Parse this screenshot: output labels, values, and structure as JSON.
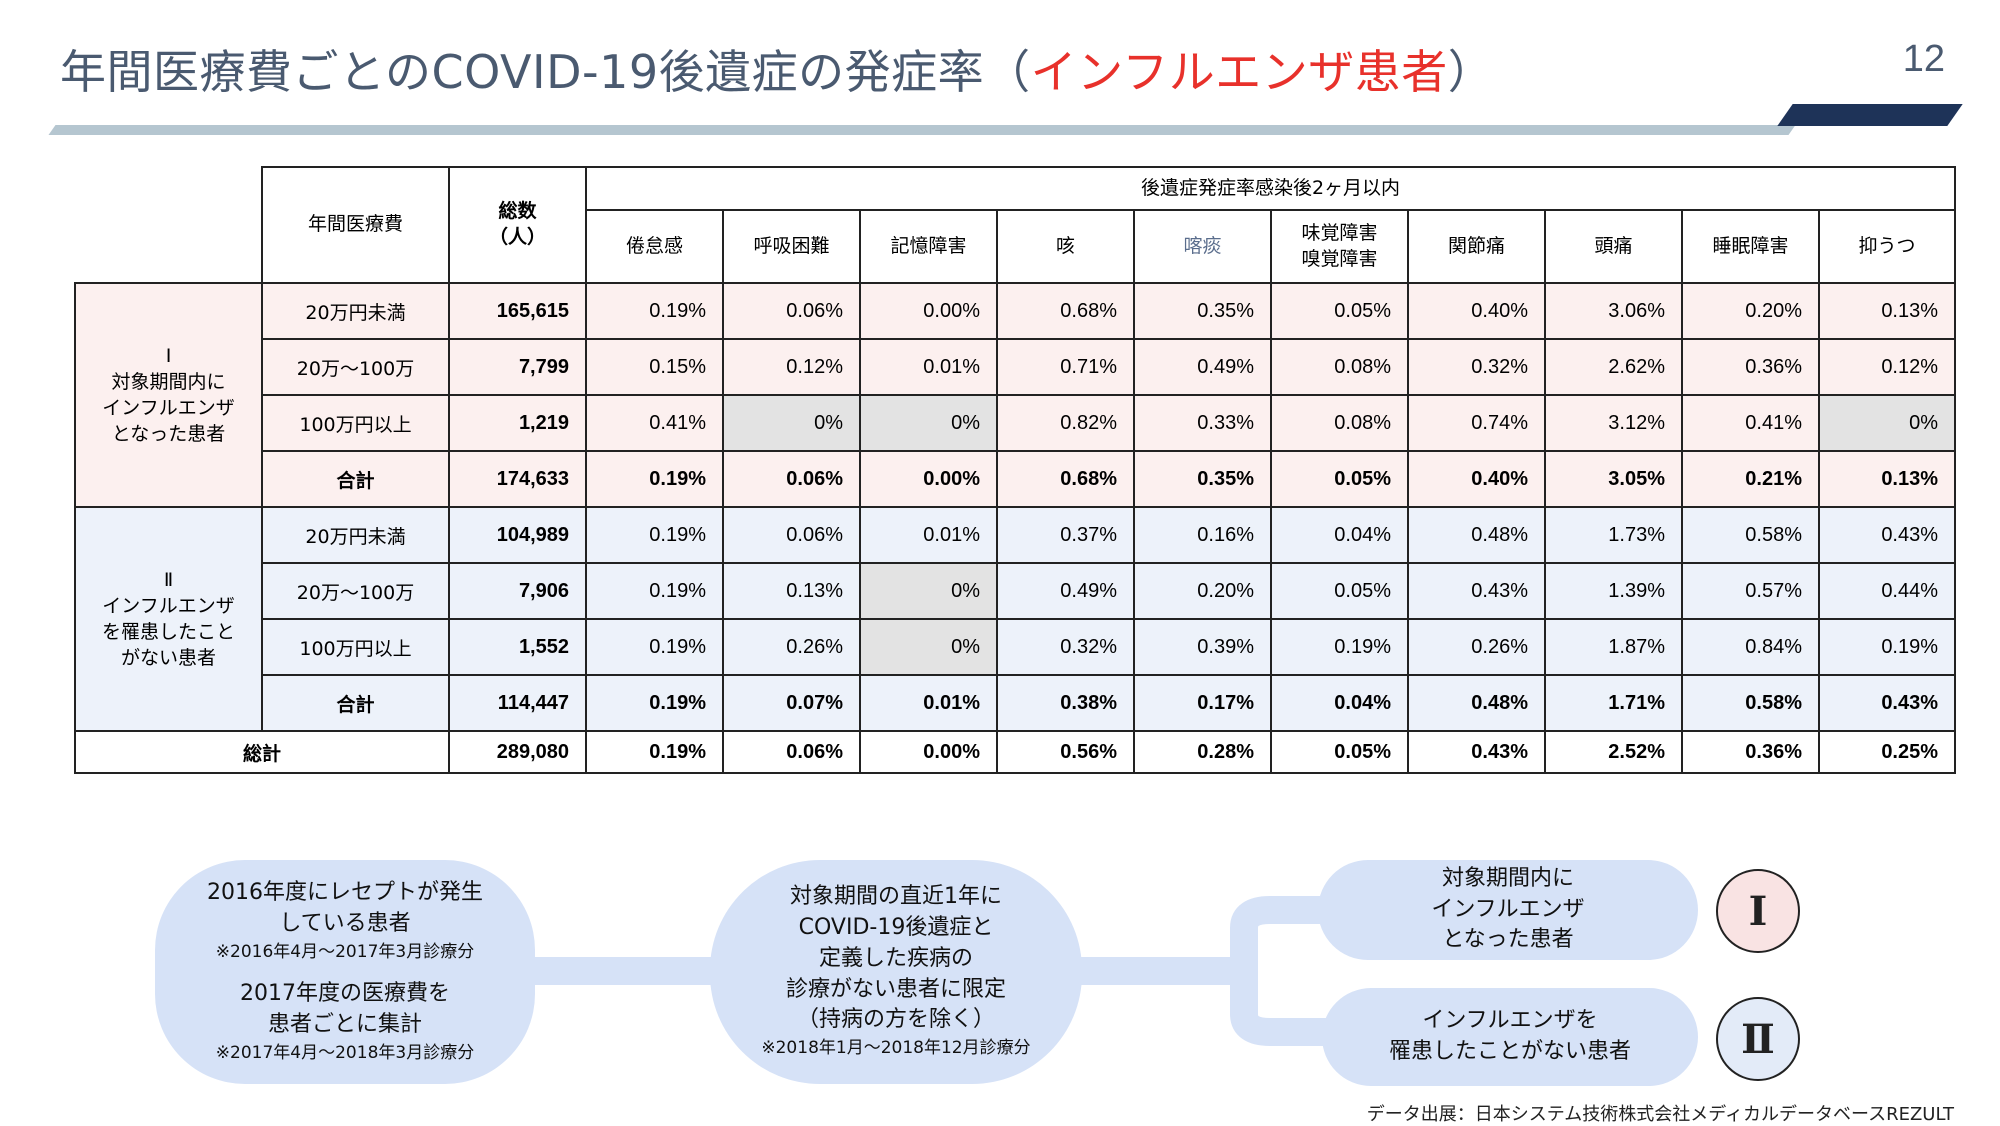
{
  "header": {
    "title_main": "年間医療費ごとのCOVID-19後遺症の発症率（",
    "title_accent": "インフルエンザ患者",
    "title_close": "）",
    "page_number": "12"
  },
  "table": {
    "col_spending": "年間医療費",
    "col_total_line1": "総数",
    "col_total_line2": "（人）",
    "group_header": "後遺症発症率感染後2ヶ月以内",
    "symptoms": [
      "倦怠感",
      "呼吸困難",
      "記憶障害",
      "咳",
      "喀痰",
      "味覚障害",
      "関節痛",
      "頭痛",
      "睡眠障害",
      "抑うつ"
    ],
    "symptom_taste_line2": "嗅覚障害",
    "groups": [
      {
        "id": "I",
        "label_line1": "Ⅰ",
        "label_line2": "対象期間内に",
        "label_line3": "インフルエンザ",
        "label_line4": "となった患者",
        "rows": [
          {
            "band": "20万円未満",
            "count": "165,615",
            "values": [
              "0.19%",
              "0.06%",
              "0.00%",
              "0.68%",
              "0.35%",
              "0.05%",
              "0.40%",
              "3.06%",
              "0.20%",
              "0.13%"
            ]
          },
          {
            "band": "20万〜100万",
            "count": "7,799",
            "values": [
              "0.15%",
              "0.12%",
              "0.01%",
              "0.71%",
              "0.49%",
              "0.08%",
              "0.32%",
              "2.62%",
              "0.36%",
              "0.12%"
            ]
          },
          {
            "band": "100万円以上",
            "count": "1,219",
            "values": [
              "0.41%",
              "0%",
              "0%",
              "0.82%",
              "0.33%",
              "0.08%",
              "0.74%",
              "3.12%",
              "0.41%",
              "0%"
            ]
          }
        ],
        "total": {
          "label": "合計",
          "count": "174,633",
          "values": [
            "0.19%",
            "0.06%",
            "0.00%",
            "0.68%",
            "0.35%",
            "0.05%",
            "0.40%",
            "3.05%",
            "0.21%",
            "0.13%"
          ]
        }
      },
      {
        "id": "II",
        "label_line1": "Ⅱ",
        "label_line2": "インフルエンザ",
        "label_line3": "を罹患したこと",
        "label_line4": "がない患者",
        "rows": [
          {
            "band": "20万円未満",
            "count": "104,989",
            "values": [
              "0.19%",
              "0.06%",
              "0.01%",
              "0.37%",
              "0.16%",
              "0.04%",
              "0.48%",
              "1.73%",
              "0.58%",
              "0.43%"
            ]
          },
          {
            "band": "20万〜100万",
            "count": "7,906",
            "values": [
              "0.19%",
              "0.13%",
              "0%",
              "0.49%",
              "0.20%",
              "0.05%",
              "0.43%",
              "1.39%",
              "0.57%",
              "0.44%"
            ]
          },
          {
            "band": "100万円以上",
            "count": "1,552",
            "values": [
              "0.19%",
              "0.26%",
              "0%",
              "0.32%",
              "0.39%",
              "0.19%",
              "0.26%",
              "1.87%",
              "0.84%",
              "0.19%"
            ]
          }
        ],
        "total": {
          "label": "合計",
          "count": "114,447",
          "values": [
            "0.19%",
            "0.07%",
            "0.01%",
            "0.38%",
            "0.17%",
            "0.04%",
            "0.48%",
            "1.71%",
            "0.58%",
            "0.43%"
          ]
        }
      }
    ],
    "grand_total": {
      "label": "総計",
      "count": "289,080",
      "values": [
        "0.19%",
        "0.06%",
        "0.00%",
        "0.56%",
        "0.28%",
        "0.05%",
        "0.43%",
        "2.52%",
        "0.36%",
        "0.25%"
      ]
    }
  },
  "flow": {
    "left": {
      "line1": "2016年度にレセプトが発生",
      "line2": "している患者",
      "note1": "※2016年4月〜2017年3月診療分",
      "line3": "2017年度の医療費を",
      "line4": "患者ごとに集計",
      "note2": "※2017年4月〜2018年3月診療分"
    },
    "middle": {
      "line1": "対象期間の直近1年に",
      "line2": "COVID-19後遺症と",
      "line3": "定義した疾病の",
      "line4": "診療がない患者に限定",
      "line5": "（持病の方を除く）",
      "note": "※2018年1月〜2018年12月診療分"
    },
    "top_right": {
      "line1": "対象期間内に",
      "line2": "インフルエンザ",
      "line3": "となった患者"
    },
    "bottom_right": {
      "line1": "インフルエンザを",
      "line2": "罹患したことがない患者"
    },
    "badge_1": "Ⅰ",
    "badge_2": "Ⅱ"
  },
  "footer": {
    "source": "データ出展：日本システム技術株式会社メディカルデータベースREZULT"
  },
  "colors": {
    "title": "#4a5a70",
    "accent_red": "#e8312b",
    "group1_bg": "#fcf0ef",
    "group2_bg": "#edf2fa",
    "zero_cell_bg": "#e3e3e3",
    "flow_fill": "#d6e2f7",
    "badge1_fill": "#f9e3e3",
    "badge2_fill": "#e3ebf8",
    "rule_dark": "#1e3358"
  }
}
